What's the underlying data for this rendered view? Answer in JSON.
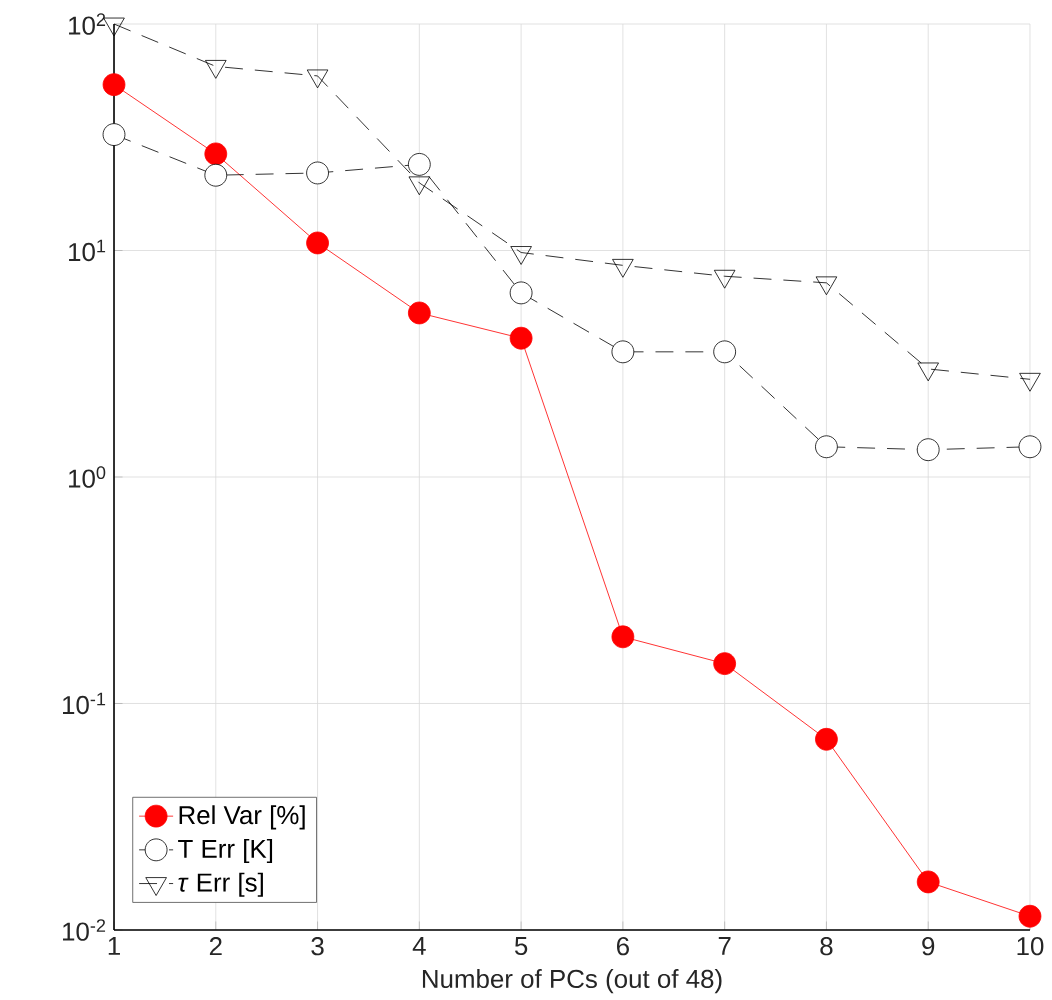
{
  "chart_data": {
    "type": "line",
    "xlabel": "Number of PCs (out of 48)",
    "x": [
      1,
      2,
      3,
      4,
      5,
      6,
      7,
      8,
      9,
      10
    ],
    "series": [
      {
        "name": "Rel Var [%]",
        "color": "#ff0000",
        "marker": "circle",
        "line_style": "solid",
        "values": [
          54,
          26.7,
          10.8,
          5.3,
          4.1,
          0.197,
          0.15,
          0.0695,
          0.0163,
          0.0115
        ]
      },
      {
        "name": "T Err [K]",
        "color": "#000000",
        "marker": "circle",
        "line_style": "dashed",
        "values": [
          32.5,
          21.5,
          22,
          24,
          6.5,
          3.57,
          3.57,
          1.36,
          1.32,
          1.36
        ]
      },
      {
        "name": "*τ* Err [s]",
        "color": "#000000",
        "marker": "triangle",
        "line_style": "dashed",
        "values": [
          100,
          65,
          59,
          19.9,
          9.8,
          8.6,
          7.7,
          7.2,
          3.0,
          2.7
        ]
      }
    ],
    "log": "y",
    "grid": true,
    "legend": "bottom left",
    "xlim": [
      1,
      10
    ],
    "xticks": [
      1,
      2,
      3,
      4,
      5,
      6,
      7,
      8,
      9,
      10
    ],
    "ylim": [
      0.01,
      100
    ],
    "yticks": [
      {
        "value": 0.01,
        "label": "10$^{-2}$"
      },
      {
        "value": 0.1,
        "label": "10$^{-1}$"
      },
      {
        "value": 1,
        "label": "10$^{0}$"
      },
      {
        "value": 10,
        "label": "10$^{1}$"
      },
      {
        "value": 100,
        "label": "10$^{2}$"
      }
    ]
  }
}
